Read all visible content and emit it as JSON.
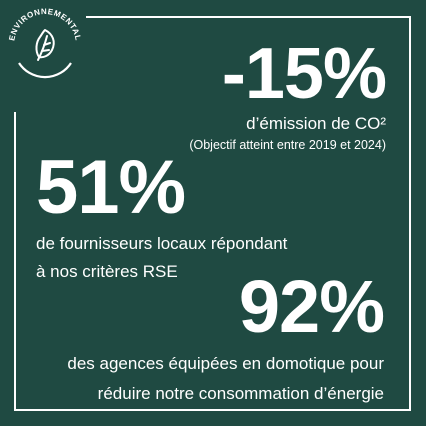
{
  "badge": {
    "label": "ENVIRONNEMENTAL",
    "icon": "leaf-icon"
  },
  "stats": [
    {
      "value": "-15%",
      "lines": [
        "d’émission de CO²"
      ],
      "note": "(Objectif atteint entre 2019 et 2024)"
    },
    {
      "value": "51%",
      "lines": [
        "de fournisseurs locaux répondant",
        "à nos critères RSE"
      ]
    },
    {
      "value": "92%",
      "lines": [
        "des agences équipées en domotique pour",
        "réduire notre consommation d’énergie"
      ]
    }
  ],
  "colors": {
    "background": "#1f4a42",
    "foreground": "#ffffff"
  }
}
